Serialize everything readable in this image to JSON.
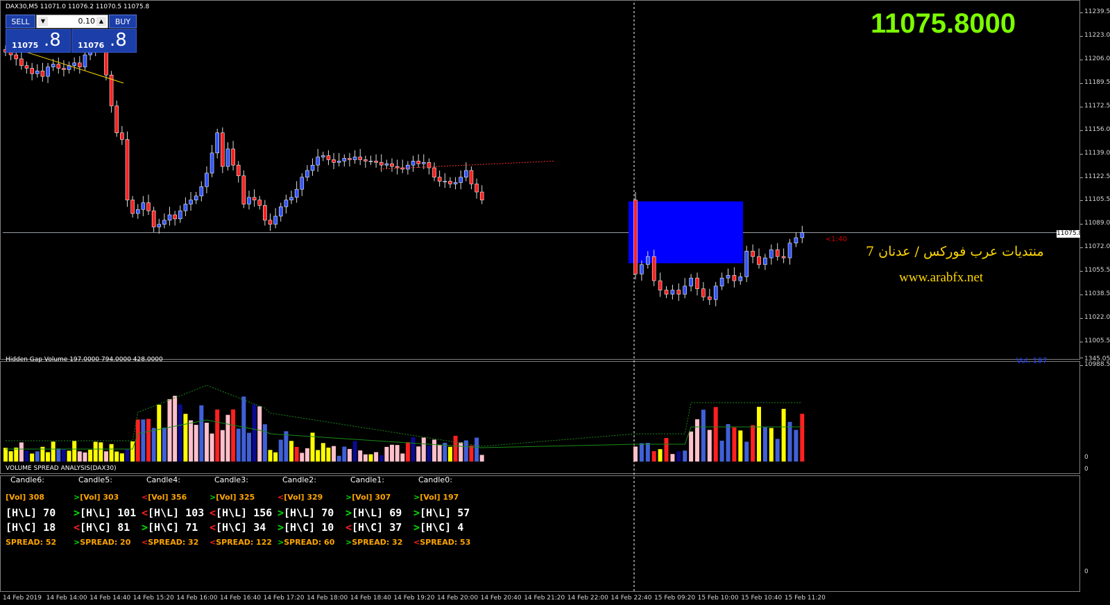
{
  "header": {
    "symbol_info": "DAX30,M5  11071.0 11076.2 11070.5 11075.8",
    "big_price": "11075.8000",
    "countdown": "<1:40",
    "current_price_tag": "11075.8",
    "watermark_arabic": "منتديات عرب فوركس / عدنان 7",
    "watermark_url": "www.arabfx.net"
  },
  "trade_panel": {
    "sell_label": "SELL",
    "buy_label": "BUY",
    "lot": "0.10",
    "sell_price_small": "11075",
    "sell_price_big": ".8",
    "buy_price_small": "11076",
    "buy_price_big": ".8"
  },
  "colors": {
    "bull": "#3355ff",
    "bear": "#ff2020",
    "rect": "#0000ff",
    "vol_blue": "#4060d8",
    "vol_pink": "#ffc0cb",
    "vol_yellow": "#ffff00",
    "vol_navy": "#0a0a90"
  },
  "price_axis": [
    "11239.5",
    "11223.0",
    "11206.0",
    "11189.5",
    "11172.5",
    "11156.0",
    "11139.0",
    "11122.5",
    "11105.5",
    "11089.0",
    "11072.0",
    "11055.5",
    "11038.5",
    "11022.0",
    "11005.5",
    "10988.5"
  ],
  "time_axis": [
    "14 Feb 2019",
    "14 Feb 14:00",
    "14 Feb 14:40",
    "14 Feb 15:20",
    "14 Feb 16:00",
    "14 Feb 16:40",
    "14 Feb 17:20",
    "14 Feb 18:00",
    "14 Feb 18:40",
    "14 Feb 19:20",
    "14 Feb 20:00",
    "14 Feb 20:40",
    "14 Feb 21:20",
    "14 Feb 22:00",
    "14 Feb 22:40",
    "15 Feb 09:20",
    "15 Feb 10:00",
    "15 Feb 10:40",
    "15 Feb 11:20"
  ],
  "volume_indicator": {
    "title": "Hidden Gap Volume 197.0000 794.0000 428.0000",
    "readout": "Vol.  197",
    "axis": [
      "1345.05",
      "0"
    ]
  },
  "vsa": {
    "title": "VOLUME SPREAD ANALYSIS(DAX30)",
    "axis": [
      "0",
      "0"
    ],
    "candles": [
      {
        "name": "Candle6:",
        "vol_arrow": "",
        "vol": "[Vol] 308",
        "hl_arrow": "",
        "hl": "[H\\L] 70",
        "hc_arrow": "",
        "hc": "[H\\C] 18",
        "sp_arrow": "",
        "sp": "SPREAD:  52"
      },
      {
        "name": "Candle5:",
        "vol_arrow": ">",
        "vol": "[Vol] 303",
        "hl_arrow": ">",
        "hl": "[H\\L] 101",
        "hc_arrow": "<",
        "hc": "[H\\C] 81",
        "sp_arrow": ">",
        "sp": "SPREAD:  20"
      },
      {
        "name": "Candle4:",
        "vol_arrow": "<",
        "vol": "[Vol] 356",
        "hl_arrow": "<",
        "hl": "[H\\L] 103",
        "hc_arrow": ">",
        "hc": "[H\\C] 71",
        "sp_arrow": "<",
        "sp": "SPREAD:  32"
      },
      {
        "name": "Candle3:",
        "vol_arrow": ">",
        "vol": "[Vol] 325",
        "hl_arrow": "<",
        "hl": "[H\\L] 156",
        "hc_arrow": "<",
        "hc": "[H\\C] 34",
        "sp_arrow": "<",
        "sp": "SPREAD:  122"
      },
      {
        "name": "Candle2:",
        "vol_arrow": "<",
        "vol": "[Vol] 329",
        "hl_arrow": ">",
        "hl": "[H\\L] 70",
        "hc_arrow": ">",
        "hc": "[H\\C] 10",
        "sp_arrow": ">",
        "sp": "SPREAD:  60"
      },
      {
        "name": "Candle1:",
        "vol_arrow": ">",
        "vol": "[Vol] 307",
        "hl_arrow": ">",
        "hl": "[H\\L] 69",
        "hc_arrow": "<",
        "hc": "[H\\C] 37",
        "sp_arrow": ">",
        "sp": "SPREAD:  32"
      },
      {
        "name": "Candle0:",
        "vol_arrow": ">",
        "vol": "[Vol] 197",
        "hl_arrow": ">",
        "hl": "[H\\L] 57",
        "hc_arrow": ">",
        "hc": "[H\\C] 4",
        "sp_arrow": "<",
        "sp": "SPREAD:  53"
      }
    ]
  },
  "chart_data": {
    "type": "candlestick",
    "price_range": [
      10988.5,
      11245
    ],
    "current_price": 11075.8,
    "ohlc_close_series": [
      11210,
      11208,
      11205,
      11200,
      11198,
      11194,
      11196,
      11192,
      11199,
      11201,
      11198,
      11197,
      11200,
      11202,
      11199,
      11208,
      11212,
      11213,
      11214,
      11193,
      11170,
      11150,
      11145,
      11100,
      11090,
      11093,
      11098,
      11092,
      11080,
      11082,
      11085,
      11089,
      11086,
      11092,
      11097,
      11100,
      11103,
      11110,
      11120,
      11135,
      11150,
      11125,
      11138,
      11126,
      11118,
      11097,
      11102,
      11100,
      11096,
      11085,
      11082,
      11088,
      11095,
      11100,
      11102,
      11108,
      11117,
      11122,
      11126,
      11132,
      11133,
      11130,
      11128,
      11129,
      11131,
      11130,
      11132,
      11130,
      11129,
      11129,
      11128,
      11126,
      11127,
      11125,
      11124,
      11123,
      11126,
      11129,
      11127,
      11128,
      11124,
      11117,
      11114,
      11114,
      11112,
      11113,
      11117,
      11122,
      11112,
      11106,
      11100,
      11045,
      11052,
      11058,
      11040,
      11033,
      11030,
      11033,
      11030,
      11036,
      11042,
      11034,
      11028,
      11026,
      11036,
      11042,
      11044,
      11040,
      11043,
      11062,
      11058,
      11052,
      11057,
      11063,
      11058,
      11057,
      11068,
      11072,
      11075.8
    ],
    "rectangle": {
      "price_top": 11099,
      "price_bottom": 11053
    },
    "volume": [
      197,
      794,
      428
    ]
  }
}
